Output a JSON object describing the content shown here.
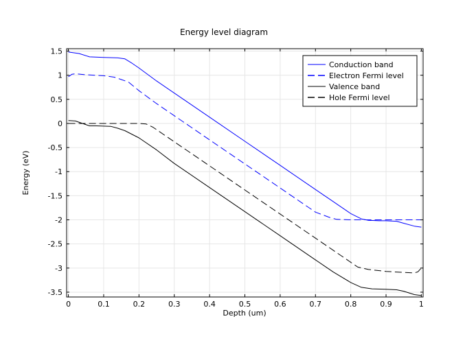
{
  "chart_data": {
    "type": "line",
    "title": "Energy level diagram",
    "xlabel": "Depth (um)",
    "ylabel": "Energy (eV)",
    "xlim": [
      -0.005,
      1.005
    ],
    "ylim": [
      -3.6,
      1.55
    ],
    "x_ticks": [
      0,
      0.1,
      0.2,
      0.3,
      0.4,
      0.5,
      0.6,
      0.7,
      0.8,
      0.9,
      1
    ],
    "x_tick_labels": [
      "0",
      "0.1",
      "0.2",
      "0.3",
      "0.4",
      "0.5",
      "0.6",
      "0.7",
      "0.8",
      "0.9",
      "1"
    ],
    "y_ticks": [
      1.5,
      1,
      0.5,
      0,
      -0.5,
      -1,
      -1.5,
      -2,
      -2.5,
      -3,
      -3.5
    ],
    "y_tick_labels": [
      "1.5",
      "1",
      "0.5",
      "0",
      "-0.5",
      "-1",
      "-1.5",
      "-2",
      "-2.5",
      "-3",
      "-3.5"
    ],
    "grid": true,
    "legend_position": "top-right",
    "series": [
      {
        "name": "Conduction band",
        "color": "#0000ff",
        "style": "solid",
        "x": [
          0,
          0.03,
          0.06,
          0.1,
          0.14,
          0.16,
          0.18,
          0.2,
          0.25,
          0.3,
          0.4,
          0.5,
          0.6,
          0.7,
          0.75,
          0.8,
          0.83,
          0.85,
          0.88,
          0.9,
          0.93,
          0.95,
          0.98,
          1
        ],
        "y": [
          1.48,
          1.45,
          1.38,
          1.37,
          1.36,
          1.34,
          1.25,
          1.15,
          0.88,
          0.63,
          0.13,
          -0.37,
          -0.87,
          -1.37,
          -1.62,
          -1.87,
          -1.98,
          -2.01,
          -2.02,
          -2.02,
          -2.03,
          -2.07,
          -2.13,
          -2.15
        ]
      },
      {
        "name": "Electron Fermi level",
        "color": "#0000ff",
        "style": "dashed",
        "x": [
          0,
          0.01,
          0.02,
          0.05,
          0.1,
          0.13,
          0.15,
          0.17,
          0.2,
          0.25,
          0.3,
          0.4,
          0.5,
          0.6,
          0.7,
          0.74,
          0.76,
          0.8,
          0.9,
          1
        ],
        "y": [
          0.97,
          1.02,
          1.03,
          1.01,
          0.99,
          0.96,
          0.91,
          0.86,
          0.68,
          0.41,
          0.16,
          -0.34,
          -0.84,
          -1.34,
          -1.84,
          -1.95,
          -1.99,
          -2.0,
          -2.0,
          -2.0
        ]
      },
      {
        "name": "Valence band",
        "color": "#000000",
        "style": "solid",
        "x": [
          0,
          0.02,
          0.04,
          0.06,
          0.08,
          0.12,
          0.14,
          0.16,
          0.2,
          0.25,
          0.3,
          0.4,
          0.5,
          0.6,
          0.7,
          0.75,
          0.8,
          0.83,
          0.86,
          0.9,
          0.93,
          0.95,
          0.98,
          1
        ],
        "y": [
          0.06,
          0.05,
          0.0,
          -0.05,
          -0.05,
          -0.06,
          -0.1,
          -0.15,
          -0.3,
          -0.55,
          -0.83,
          -1.33,
          -1.83,
          -2.33,
          -2.83,
          -3.08,
          -3.3,
          -3.4,
          -3.43,
          -3.44,
          -3.45,
          -3.48,
          -3.55,
          -3.57
        ]
      },
      {
        "name": "Hole Fermi level",
        "color": "#000000",
        "style": "dashed",
        "x": [
          0,
          0.1,
          0.2,
          0.22,
          0.24,
          0.3,
          0.4,
          0.5,
          0.6,
          0.7,
          0.75,
          0.8,
          0.82,
          0.85,
          0.9,
          0.95,
          0.98,
          0.99,
          1
        ],
        "y": [
          0.0,
          0.0,
          0.0,
          -0.01,
          -0.08,
          -0.38,
          -0.88,
          -1.38,
          -1.88,
          -2.38,
          -2.63,
          -2.88,
          -2.98,
          -3.03,
          -3.07,
          -3.09,
          -3.1,
          -3.08,
          -3.0
        ]
      }
    ]
  }
}
